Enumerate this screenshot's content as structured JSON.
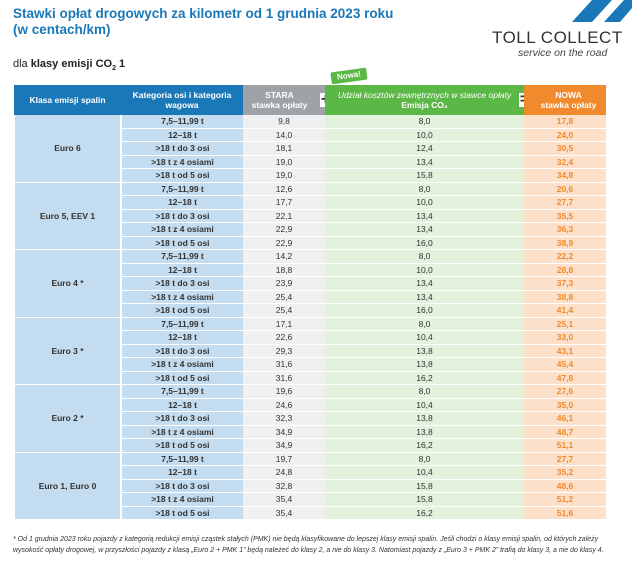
{
  "title_line1": "Stawki opłat drogowych za kilometr od 1 grudnia 2023 roku",
  "title_line2": "(w centach/km)",
  "logo": {
    "name": "TOLL COLLECT",
    "tagline": "service on the road"
  },
  "subtitle_prefix": "dla ",
  "subtitle_bold": "klasy emisji CO",
  "subtitle_sub": "2",
  "subtitle_suffix": " 1",
  "badge": "Nowa!",
  "headers": {
    "klasa": "Klasa emisji spalin",
    "kategoria": "Kategoria osi i kategoria wagowa",
    "stara": "STARA",
    "stara2": "stawka opłaty",
    "udzial": "Udział kosztów zewnętrznych w stawce opłaty",
    "emisja": "Emisja CO₂",
    "nowa": "NOWA",
    "nowa2": "stawka opłaty",
    "plus": "+",
    "equals": "="
  },
  "colors": {
    "blue": "#1a78b8",
    "grey": "#9ea3a8",
    "green": "#5cb846",
    "orange": "#f08a2c"
  },
  "categories": [
    "7,5–11,99 t",
    "12–18 t",
    ">18 t do 3 osi",
    ">18 t z 4 osiami",
    ">18 t od 5 osi"
  ],
  "groups": [
    {
      "klasa": "Euro 6",
      "stara": [
        "9,8",
        "14,0",
        "18,1",
        "19,0",
        "19,0"
      ],
      "co2": [
        "8,0",
        "10,0",
        "12,4",
        "13,4",
        "15,8"
      ],
      "nowa": [
        "17,8",
        "24,0",
        "30,5",
        "32,4",
        "34,8"
      ]
    },
    {
      "klasa": "Euro 5, EEV 1",
      "stara": [
        "12,6",
        "17,7",
        "22,1",
        "22,9",
        "22,9"
      ],
      "co2": [
        "8,0",
        "10,0",
        "13,4",
        "13,4",
        "16,0"
      ],
      "nowa": [
        "20,6",
        "27,7",
        "35,5",
        "36,3",
        "38,9"
      ]
    },
    {
      "klasa": "Euro 4 *",
      "stara": [
        "14,2",
        "18,8",
        "23,9",
        "25,4",
        "25,4"
      ],
      "co2": [
        "8,0",
        "10,0",
        "13,4",
        "13,4",
        "16,0"
      ],
      "nowa": [
        "22,2",
        "28,8",
        "37,3",
        "38,8",
        "41,4"
      ]
    },
    {
      "klasa": "Euro 3 *",
      "stara": [
        "17,1",
        "22,6",
        "29,3",
        "31,6",
        "31,6"
      ],
      "co2": [
        "8,0",
        "10,4",
        "13,8",
        "13,8",
        "16,2"
      ],
      "nowa": [
        "25,1",
        "33,0",
        "43,1",
        "45,4",
        "47,8"
      ]
    },
    {
      "klasa": "Euro 2 *",
      "stara": [
        "19,6",
        "24,6",
        "32,3",
        "34,9",
        "34,9"
      ],
      "co2": [
        "8,0",
        "10,4",
        "13,8",
        "13,8",
        "16,2"
      ],
      "nowa": [
        "27,6",
        "35,0",
        "46,1",
        "48,7",
        "51,1"
      ]
    },
    {
      "klasa": "Euro 1, Euro 0",
      "stara": [
        "19,7",
        "24,8",
        "32,8",
        "35,4",
        "35,4"
      ],
      "co2": [
        "8,0",
        "10,4",
        "15,8",
        "15,8",
        "16,2"
      ],
      "nowa": [
        "27,7",
        "35,2",
        "48,6",
        "51,2",
        "51,6"
      ]
    }
  ],
  "footnote": "* Od 1 grudnia 2023 roku pojazdy z kategorią redukcji emisji cząstek stałych (PMK) nie będą klasyfikowane do lepszej klasy emisji spalin. Jeśli chodzi o klasy emisji spalin, od których zależy wysokość opłaty drogowej, w przyszłości pojazdy z klasą „Euro 2 + PMK 1” będą należeć do klasy 2, a nie do klasy 3. Natomiast pojazdy z „Euro 3 + PMK 2” trafią do klasy 3, a nie do klasy 4."
}
